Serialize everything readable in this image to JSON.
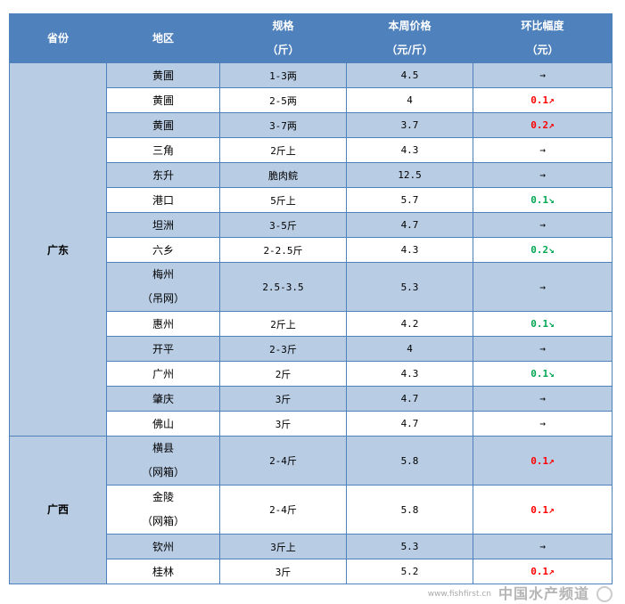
{
  "header": {
    "province": "省份",
    "region": "地区",
    "spec": [
      "规格",
      "（斤）"
    ],
    "price": [
      "本周价格",
      "（元/斤）"
    ],
    "change": [
      "环比幅度",
      "（元）"
    ]
  },
  "groups": [
    {
      "province": "广东",
      "rows": [
        {
          "region": [
            "黄圃"
          ],
          "spec": "1-3两",
          "price": "4.5",
          "change": "",
          "dir": "flat",
          "arrow": "→"
        },
        {
          "region": [
            "黄圃"
          ],
          "spec": "2-5两",
          "price": "4",
          "change": "0.1",
          "dir": "up",
          "arrow": "↗"
        },
        {
          "region": [
            "黄圃"
          ],
          "spec": "3-7两",
          "price": "3.7",
          "change": "0.2",
          "dir": "up",
          "arrow": "↗"
        },
        {
          "region": [
            "三角"
          ],
          "spec": "2斤上",
          "price": "4.3",
          "change": "",
          "dir": "flat",
          "arrow": "→"
        },
        {
          "region": [
            "东升"
          ],
          "spec": "脆肉鲩",
          "price": "12.5",
          "change": "",
          "dir": "flat",
          "arrow": "→"
        },
        {
          "region": [
            "港口"
          ],
          "spec": "5斤上",
          "price": "5.7",
          "change": "0.1",
          "dir": "down",
          "arrow": "↘"
        },
        {
          "region": [
            "坦洲"
          ],
          "spec": "3-5斤",
          "price": "4.7",
          "change": "",
          "dir": "flat",
          "arrow": "→"
        },
        {
          "region": [
            "六乡"
          ],
          "spec": "2-2.5斤",
          "price": "4.3",
          "change": "0.2",
          "dir": "down",
          "arrow": "↘"
        },
        {
          "region": [
            "梅州",
            "（吊网）"
          ],
          "spec": "2.5-3.5",
          "price": "5.3",
          "change": "",
          "dir": "flat",
          "arrow": "→"
        },
        {
          "region": [
            "惠州"
          ],
          "spec": "2斤上",
          "price": "4.2",
          "change": "0.1",
          "dir": "down",
          "arrow": "↘"
        },
        {
          "region": [
            "开平"
          ],
          "spec": "2-3斤",
          "price": "4",
          "change": "",
          "dir": "flat",
          "arrow": "→"
        },
        {
          "region": [
            "广州"
          ],
          "spec": "2斤",
          "price": "4.3",
          "change": "0.1",
          "dir": "down",
          "arrow": "↘"
        },
        {
          "region": [
            "肇庆"
          ],
          "spec": "3斤",
          "price": "4.7",
          "change": "",
          "dir": "flat",
          "arrow": "→"
        },
        {
          "region": [
            "佛山"
          ],
          "spec": "3斤",
          "price": "4.7",
          "change": "",
          "dir": "flat",
          "arrow": "→"
        }
      ]
    },
    {
      "province": "广西",
      "rows": [
        {
          "region": [
            "横县",
            "（网箱）"
          ],
          "spec": "2-4斤",
          "price": "5.8",
          "change": "0.1",
          "dir": "up",
          "arrow": "↗"
        },
        {
          "region": [
            "金陵",
            "（网箱）"
          ],
          "spec": "2-4斤",
          "price": "5.8",
          "change": "0.1",
          "dir": "up",
          "arrow": "↗"
        },
        {
          "region": [
            "钦州"
          ],
          "spec": "3斤上",
          "price": "5.3",
          "change": "",
          "dir": "flat",
          "arrow": "→"
        },
        {
          "region": [
            "桂林"
          ],
          "spec": "3斤",
          "price": "5.2",
          "change": "0.1",
          "dir": "up",
          "arrow": "↗"
        }
      ]
    }
  ],
  "colors": {
    "header": "#4f81bd",
    "row_alt": "#b8cce4",
    "up": "#ff0000",
    "down": "#00a650"
  },
  "watermark": {
    "text": "中国水产频道",
    "url": "www.fishfirst.cn"
  }
}
